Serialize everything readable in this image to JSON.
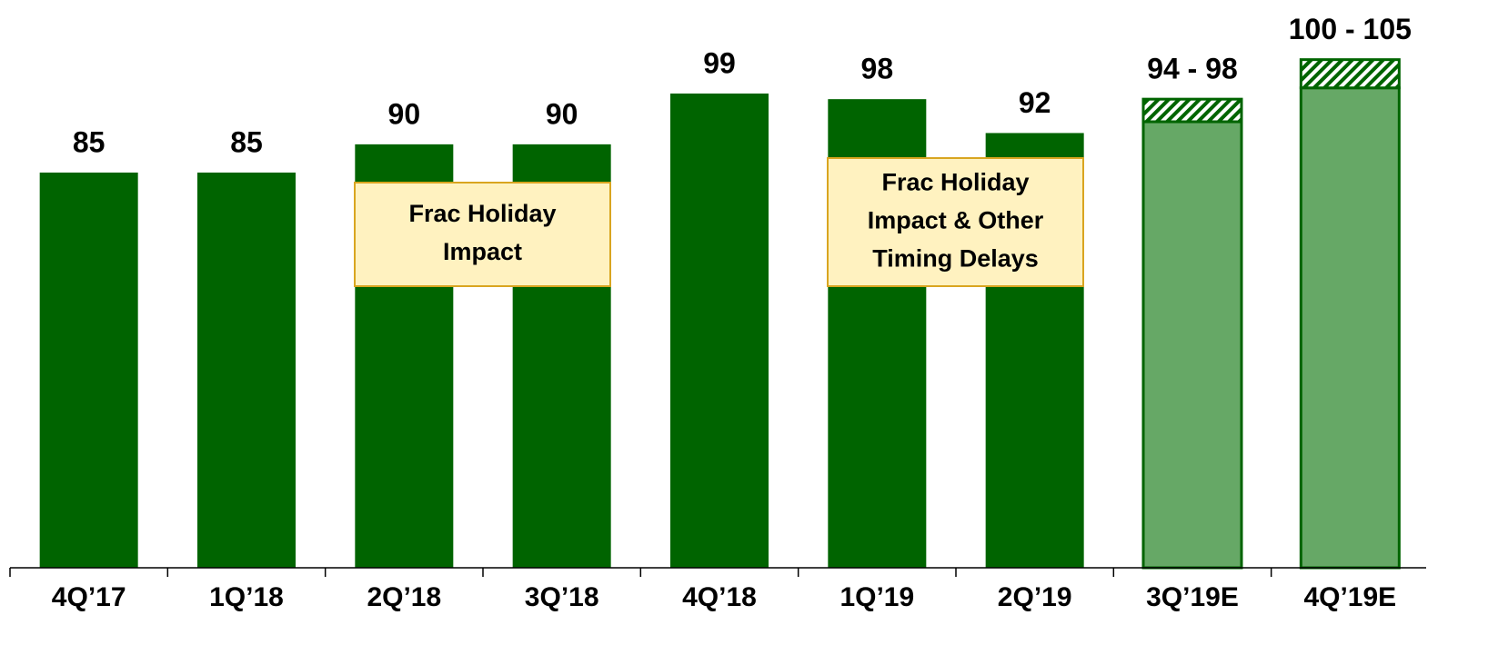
{
  "chart_data": {
    "type": "bar",
    "categories": [
      "4Q’17",
      "1Q’18",
      "2Q’18",
      "3Q’18",
      "4Q’18",
      "1Q’19",
      "2Q’19",
      "3Q’19E",
      "4Q’19E"
    ],
    "values": [
      85,
      85,
      90,
      90,
      99,
      98,
      92,
      94,
      100
    ],
    "high": [
      null,
      null,
      null,
      null,
      null,
      null,
      null,
      98,
      105
    ],
    "value_labels": [
      "85",
      "85",
      "90",
      "90",
      "99",
      "98",
      "92",
      "94 - 98",
      "100 - 105"
    ],
    "colors": [
      "#006400",
      "#006400",
      "#006400",
      "#006400",
      "#006400",
      "#006400",
      "#006400",
      "#66a866",
      "#66a866"
    ],
    "range_color": "#006400",
    "ylim": [
      15,
      108
    ],
    "annotations": [
      {
        "lines": [
          "Frac Holiday",
          "Impact"
        ]
      },
      {
        "lines": [
          "Frac Holiday",
          "Impact & Other",
          "Timing Delays"
        ]
      }
    ]
  }
}
